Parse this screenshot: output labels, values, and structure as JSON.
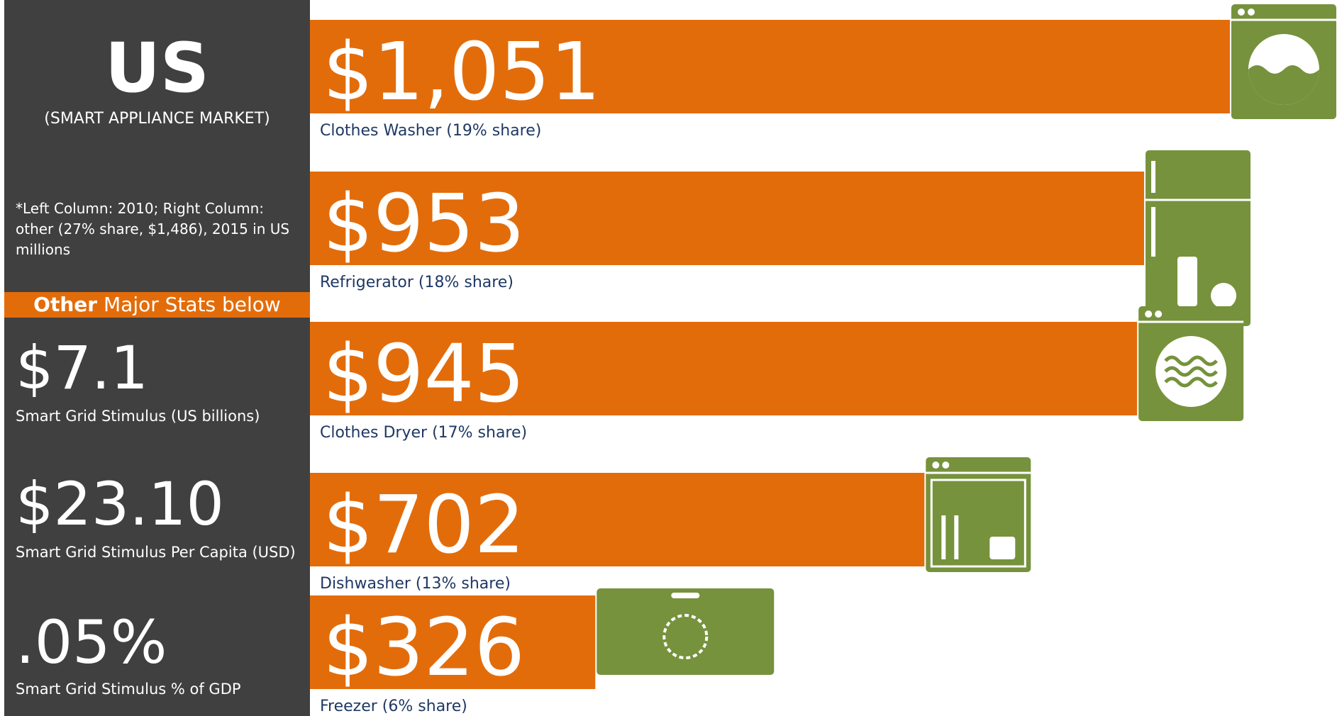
{
  "panel": {
    "title": "US",
    "subtitle": "(SMART APPLIANCE MARKET)",
    "note": "*Left Column: 2010; Right Column: other (27% share, $1,486), 2015 in US millions",
    "banner_strong": "Other",
    "banner_rest": "Major Stats below",
    "stats": [
      {
        "value": "$7.1",
        "label": "Smart Grid Stimulus (US billions)"
      },
      {
        "value": "$23.10",
        "label": "Smart Grid Stimulus Per Capita (USD)"
      },
      {
        "value": ".05%",
        "label": "Smart Grid Stimulus % of GDP"
      }
    ]
  },
  "chart_data": {
    "type": "bar",
    "orientation": "horizontal",
    "categories": [
      "Clothes Washer (19% share)",
      "Refrigerator (18% share)",
      "Clothes Dryer (17% share)",
      "Dishwasher (13% share)",
      "Freezer (6% share)"
    ],
    "values": [
      1051,
      953,
      945,
      702,
      326
    ],
    "value_labels": [
      "$1,051",
      "$953",
      "$945",
      "$702",
      "$326"
    ],
    "color": "#e36c0a",
    "icon_color": "#76923c"
  }
}
